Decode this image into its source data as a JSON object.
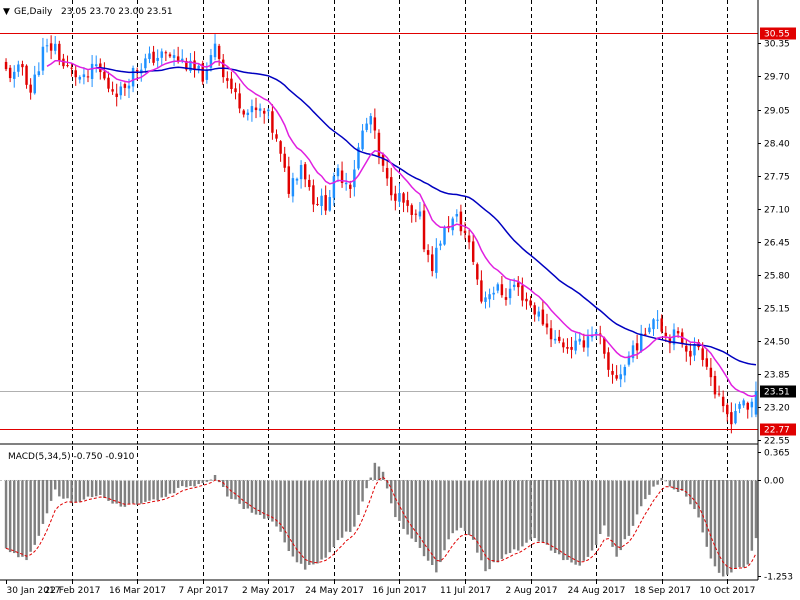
{
  "title": "GE,Daily",
  "ohlc": "23.05 23.70 23.00 23.51",
  "chart_data": [
    {
      "type": "candlestick",
      "title": "GE,Daily",
      "subtitle": "23.05 23.70 23.00 23.51",
      "ylim": [
        22.55,
        30.85
      ],
      "y_ticks": [
        "30.35",
        "29.70",
        "29.05",
        "28.40",
        "27.75",
        "27.10",
        "26.45",
        "25.80",
        "25.15",
        "24.50",
        "23.85",
        "23.20",
        "22.55"
      ],
      "x_ticks": [
        "30 Jan 2017",
        "22 Feb 2017",
        "16 Mar 2017",
        "7 Apr 2017",
        "2 May 2017",
        "24 May 2017",
        "16 Jun 2017",
        "11 Jul 2017",
        "2 Aug 2017",
        "24 Aug 2017",
        "18 Sep 2017",
        "10 Oct 2017"
      ],
      "x_tick_days": [
        0,
        16,
        32,
        48,
        64,
        80,
        96,
        112,
        128,
        144,
        160,
        176
      ],
      "level_lines": [
        {
          "value": 30.55,
          "label": "30.55",
          "color": "#e00000"
        },
        {
          "value": 22.77,
          "label": "22.77",
          "color": "#e00000"
        },
        {
          "value": 23.51,
          "label": "23.51",
          "color": "#000000"
        }
      ],
      "colors": {
        "up": "#1e90ff",
        "down": "#e00000",
        "fast_ma": "#e020e0",
        "slow_ma": "#0000c0"
      },
      "close_anchors": [
        [
          0,
          29.8
        ],
        [
          2,
          29.7
        ],
        [
          4,
          29.9
        ],
        [
          6,
          29.4
        ],
        [
          9,
          30.2
        ],
        [
          12,
          30.3
        ],
        [
          14,
          29.9
        ],
        [
          16,
          29.8
        ],
        [
          19,
          29.6
        ],
        [
          22,
          29.9
        ],
        [
          25,
          29.5
        ],
        [
          28,
          29.4
        ],
        [
          31,
          29.8
        ],
        [
          34,
          30.0
        ],
        [
          37,
          30.1
        ],
        [
          40,
          30.1
        ],
        [
          43,
          30.0
        ],
        [
          46,
          29.8
        ],
        [
          49,
          29.7
        ],
        [
          51,
          30.4
        ],
        [
          53,
          29.8
        ],
        [
          56,
          29.3
        ],
        [
          59,
          29.0
        ],
        [
          62,
          29.0
        ],
        [
          64,
          28.9
        ],
        [
          66,
          28.4
        ],
        [
          69,
          27.5
        ],
        [
          72,
          28.0
        ],
        [
          75,
          27.3
        ],
        [
          78,
          27.2
        ],
        [
          81,
          27.8
        ],
        [
          84,
          27.6
        ],
        [
          87,
          28.6
        ],
        [
          89,
          28.9
        ],
        [
          91,
          28.1
        ],
        [
          93,
          27.6
        ],
        [
          95,
          27.4
        ],
        [
          97,
          27.2
        ],
        [
          99,
          26.9
        ],
        [
          101,
          26.9
        ],
        [
          102,
          26.4
        ],
        [
          104,
          26.0
        ],
        [
          106,
          26.5
        ],
        [
          108,
          26.8
        ],
        [
          110,
          26.9
        ],
        [
          112,
          26.6
        ],
        [
          114,
          26.1
        ],
        [
          116,
          25.3
        ],
        [
          118,
          25.5
        ],
        [
          120,
          25.5
        ],
        [
          122,
          25.4
        ],
        [
          124,
          25.6
        ],
        [
          126,
          25.4
        ],
        [
          128,
          25.2
        ],
        [
          131,
          24.9
        ],
        [
          134,
          24.5
        ],
        [
          137,
          24.4
        ],
        [
          140,
          24.4
        ],
        [
          143,
          24.7
        ],
        [
          145,
          24.5
        ],
        [
          147,
          23.8
        ],
        [
          149,
          23.8
        ],
        [
          151,
          24.0
        ],
        [
          153,
          24.4
        ],
        [
          155,
          24.5
        ],
        [
          157,
          24.9
        ],
        [
          159,
          25.0
        ],
        [
          161,
          24.6
        ],
        [
          163,
          24.6
        ],
        [
          165,
          24.5
        ],
        [
          167,
          24.3
        ],
        [
          169,
          24.4
        ],
        [
          171,
          24.1
        ],
        [
          173,
          23.5
        ],
        [
          175,
          23.1
        ],
        [
          177,
          23.0
        ],
        [
          179,
          23.3
        ],
        [
          181,
          23.1
        ],
        [
          183,
          23.51
        ]
      ],
      "macd_title": "MACD(5,34,5) -0.750 -0.910",
      "macd_ylim": [
        -1.253,
        0.365
      ],
      "macd_ticks": [
        "0.365",
        "0.00",
        "-1.253"
      ],
      "macd_anchors": [
        [
          0,
          -0.9
        ],
        [
          5,
          -1.05
        ],
        [
          9,
          -0.6
        ],
        [
          12,
          -0.15
        ],
        [
          16,
          -0.3
        ],
        [
          22,
          -0.2
        ],
        [
          28,
          -0.35
        ],
        [
          33,
          -0.3
        ],
        [
          38,
          -0.25
        ],
        [
          43,
          -0.1
        ],
        [
          48,
          -0.05
        ],
        [
          51,
          0.05
        ],
        [
          54,
          -0.2
        ],
        [
          58,
          -0.35
        ],
        [
          62,
          -0.45
        ],
        [
          66,
          -0.6
        ],
        [
          70,
          -1.0
        ],
        [
          73,
          -1.15
        ],
        [
          77,
          -1.05
        ],
        [
          81,
          -0.8
        ],
        [
          85,
          -0.6
        ],
        [
          88,
          -0.1
        ],
        [
          90,
          0.2
        ],
        [
          92,
          0.1
        ],
        [
          95,
          -0.5
        ],
        [
          99,
          -0.75
        ],
        [
          102,
          -1.0
        ],
        [
          105,
          -1.2
        ],
        [
          108,
          -0.75
        ],
        [
          111,
          -0.6
        ],
        [
          114,
          -0.8
        ],
        [
          117,
          -1.2
        ],
        [
          121,
          -1.0
        ],
        [
          125,
          -0.9
        ],
        [
          128,
          -0.75
        ],
        [
          132,
          -0.85
        ],
        [
          136,
          -1.05
        ],
        [
          140,
          -1.1
        ],
        [
          143,
          -0.95
        ],
        [
          146,
          -0.6
        ],
        [
          149,
          -1.0
        ],
        [
          152,
          -0.7
        ],
        [
          155,
          -0.35
        ],
        [
          158,
          -0.1
        ],
        [
          160,
          0.0
        ],
        [
          163,
          -0.1
        ],
        [
          166,
          -0.2
        ],
        [
          169,
          -0.5
        ],
        [
          172,
          -1.05
        ],
        [
          175,
          -1.25
        ],
        [
          178,
          -1.15
        ],
        [
          181,
          -1.1
        ],
        [
          183,
          -0.75
        ]
      ]
    }
  ]
}
